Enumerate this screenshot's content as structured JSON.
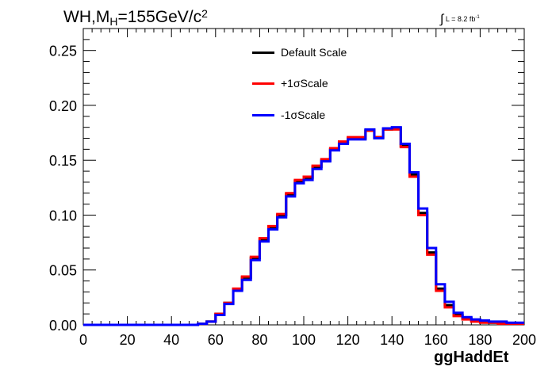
{
  "title": {
    "main": "WH,M",
    "sub": "H",
    "mid": "=155GeV/c",
    "sup": "2"
  },
  "lumi": {
    "integral": "∫",
    "text": "L = 8.2 fb",
    "sup": "-1"
  },
  "colors": {
    "Default Scale": "#000000",
    "+1σScale": "#ff0000",
    "-1σScale": "#0000ff"
  },
  "chart_data": {
    "type": "line",
    "xlabel": "ggHaddEt",
    "ylabel": "",
    "xlim": [
      0,
      200
    ],
    "ylim": [
      0,
      0.27
    ],
    "x_ticks": [
      "0",
      "20",
      "40",
      "60",
      "80",
      "100",
      "120",
      "140",
      "160",
      "180",
      "200"
    ],
    "y_ticks": [
      "0.00",
      "0.05",
      "0.10",
      "0.15",
      "0.20",
      "0.25"
    ],
    "bin_edges": [
      0,
      4,
      8,
      12,
      16,
      20,
      24,
      28,
      32,
      36,
      40,
      44,
      48,
      52,
      56,
      60,
      64,
      68,
      72,
      76,
      80,
      84,
      88,
      92,
      96,
      100,
      104,
      108,
      112,
      116,
      120,
      124,
      128,
      132,
      136,
      140,
      144,
      148,
      152,
      156,
      160,
      164,
      168,
      172,
      176,
      180,
      184,
      188,
      192,
      196,
      200
    ],
    "series": [
      {
        "name": "Default Scale",
        "values": [
          0,
          0,
          0,
          0,
          0,
          0,
          0,
          0,
          0,
          0,
          0,
          0,
          0,
          0.001,
          0.003,
          0.01,
          0.02,
          0.032,
          0.043,
          0.061,
          0.078,
          0.089,
          0.1,
          0.119,
          0.131,
          0.134,
          0.144,
          0.15,
          0.16,
          0.166,
          0.17,
          0.17,
          0.177,
          0.171,
          0.178,
          0.179,
          0.163,
          0.137,
          0.102,
          0.066,
          0.033,
          0.018,
          0.009,
          0.006,
          0.004,
          0.003,
          0.002,
          0.002,
          0.001,
          0.001
        ]
      },
      {
        "name": "+1σScale",
        "values": [
          0,
          0,
          0,
          0,
          0,
          0,
          0,
          0,
          0,
          0,
          0,
          0,
          0,
          0.001,
          0.003,
          0.01,
          0.02,
          0.033,
          0.044,
          0.062,
          0.079,
          0.09,
          0.101,
          0.12,
          0.132,
          0.135,
          0.145,
          0.151,
          0.161,
          0.167,
          0.171,
          0.171,
          0.177,
          0.171,
          0.178,
          0.178,
          0.162,
          0.135,
          0.1,
          0.064,
          0.031,
          0.016,
          0.008,
          0.005,
          0.003,
          0.002,
          0.002,
          0.001,
          0.001,
          0.001
        ]
      },
      {
        "name": "-1σScale",
        "values": [
          0,
          0,
          0,
          0,
          0,
          0,
          0,
          0,
          0,
          0,
          0,
          0,
          0,
          0.001,
          0.003,
          0.009,
          0.019,
          0.031,
          0.041,
          0.059,
          0.076,
          0.087,
          0.098,
          0.117,
          0.129,
          0.132,
          0.142,
          0.149,
          0.159,
          0.165,
          0.169,
          0.169,
          0.178,
          0.17,
          0.179,
          0.18,
          0.165,
          0.139,
          0.106,
          0.07,
          0.037,
          0.021,
          0.011,
          0.007,
          0.005,
          0.004,
          0.003,
          0.003,
          0.002,
          0.002
        ]
      }
    ]
  }
}
